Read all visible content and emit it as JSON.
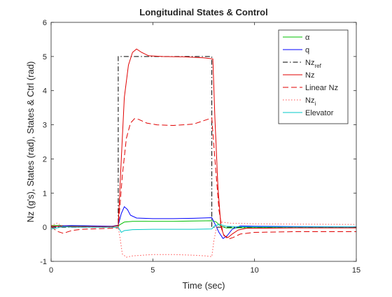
{
  "chart_data": {
    "type": "line",
    "title": "Longitudinal States & Control",
    "xlabel": "Time (sec)",
    "ylabel": "Nz (g's), States (rad), States & Ctrl (rad)",
    "xlim": [
      0,
      15
    ],
    "ylim": [
      -1,
      6
    ],
    "xticks": [
      0,
      5,
      10,
      15
    ],
    "yticks": [
      -1,
      0,
      1,
      2,
      3,
      4,
      5,
      6
    ],
    "grid": false,
    "legend_position": "top-right",
    "series": [
      {
        "name": "α",
        "color": "#00c000",
        "dash": "solid",
        "points": [
          [
            0,
            0.05
          ],
          [
            0.5,
            0.05
          ],
          [
            1,
            0.03
          ],
          [
            2,
            0.02
          ],
          [
            3,
            0.03
          ],
          [
            3.3,
            0.04
          ],
          [
            3.4,
            0.08
          ],
          [
            3.6,
            0.15
          ],
          [
            4,
            0.17
          ],
          [
            5,
            0.17
          ],
          [
            6,
            0.17
          ],
          [
            7,
            0.18
          ],
          [
            7.9,
            0.19
          ],
          [
            8.1,
            0.16
          ],
          [
            8.3,
            0.05
          ],
          [
            8.6,
            -0.02
          ],
          [
            9,
            -0.02
          ],
          [
            10,
            -0.01
          ],
          [
            12,
            0.0
          ],
          [
            15,
            0.0
          ]
        ]
      },
      {
        "name": "q",
        "color": "#0000ff",
        "dash": "solid",
        "points": [
          [
            0,
            0.0
          ],
          [
            0.5,
            0.04
          ],
          [
            1,
            0.05
          ],
          [
            2,
            0.04
          ],
          [
            3,
            0.03
          ],
          [
            3.3,
            0.06
          ],
          [
            3.45,
            0.4
          ],
          [
            3.6,
            0.6
          ],
          [
            3.75,
            0.52
          ],
          [
            3.9,
            0.35
          ],
          [
            4.2,
            0.27
          ],
          [
            5,
            0.25
          ],
          [
            6,
            0.25
          ],
          [
            7,
            0.26
          ],
          [
            7.9,
            0.28
          ],
          [
            8.05,
            0.1
          ],
          [
            8.25,
            -0.15
          ],
          [
            8.45,
            -0.33
          ],
          [
            8.65,
            -0.25
          ],
          [
            8.9,
            -0.06
          ],
          [
            9.3,
            0.04
          ],
          [
            10,
            0.03
          ],
          [
            12,
            0.02
          ],
          [
            15,
            0.01
          ]
        ]
      },
      {
        "name": "Nz_ref",
        "color": "#000000",
        "dash": "dashdot",
        "points": [
          [
            0,
            0
          ],
          [
            3.3,
            0
          ],
          [
            3.3,
            5
          ],
          [
            7.9,
            5
          ],
          [
            7.9,
            0
          ],
          [
            15,
            0
          ]
        ]
      },
      {
        "name": "Nz",
        "color": "#e00000",
        "dash": "solid",
        "points": [
          [
            0,
            0.03
          ],
          [
            1,
            0.02
          ],
          [
            2,
            0.02
          ],
          [
            3,
            0.02
          ],
          [
            3.3,
            0.05
          ],
          [
            3.45,
            2.0
          ],
          [
            3.6,
            3.8
          ],
          [
            3.8,
            4.75
          ],
          [
            4.0,
            5.12
          ],
          [
            4.2,
            5.22
          ],
          [
            4.45,
            5.12
          ],
          [
            4.8,
            5.02
          ],
          [
            5.5,
            5.0
          ],
          [
            6.5,
            4.99
          ],
          [
            7.5,
            4.96
          ],
          [
            7.95,
            4.93
          ],
          [
            8.05,
            3.2
          ],
          [
            8.2,
            1.2
          ],
          [
            8.35,
            0.0
          ],
          [
            8.5,
            -0.25
          ],
          [
            8.7,
            -0.3
          ],
          [
            8.9,
            -0.2
          ],
          [
            9.2,
            -0.08
          ],
          [
            9.6,
            -0.03
          ],
          [
            10,
            -0.03
          ],
          [
            12,
            -0.02
          ],
          [
            15,
            -0.02
          ]
        ]
      },
      {
        "name": "Linear Nz",
        "color": "#e00000",
        "dash": "dash",
        "points": [
          [
            0,
            0.02
          ],
          [
            0.3,
            -0.12
          ],
          [
            0.6,
            -0.18
          ],
          [
            1.0,
            -0.1
          ],
          [
            1.5,
            -0.06
          ],
          [
            2,
            -0.05
          ],
          [
            3,
            -0.03
          ],
          [
            3.3,
            -0.02
          ],
          [
            3.5,
            1.5
          ],
          [
            3.7,
            2.6
          ],
          [
            3.9,
            3.05
          ],
          [
            4.1,
            3.18
          ],
          [
            4.3,
            3.16
          ],
          [
            4.7,
            3.05
          ],
          [
            5.2,
            3.0
          ],
          [
            6,
            2.98
          ],
          [
            7,
            3.02
          ],
          [
            7.5,
            3.12
          ],
          [
            7.9,
            3.2
          ],
          [
            8.05,
            2.0
          ],
          [
            8.25,
            0.5
          ],
          [
            8.45,
            -0.2
          ],
          [
            8.7,
            -0.35
          ],
          [
            8.95,
            -0.3
          ],
          [
            9.3,
            -0.2
          ],
          [
            10,
            -0.15
          ],
          [
            12,
            -0.13
          ],
          [
            15,
            -0.13
          ]
        ]
      },
      {
        "name": "Nz_i",
        "color": "#ff5050",
        "dash": "dot",
        "points": [
          [
            0,
            0.05
          ],
          [
            0.3,
            0.12
          ],
          [
            0.6,
            0.02
          ],
          [
            1,
            0.0
          ],
          [
            2,
            0.0
          ],
          [
            3,
            0.0
          ],
          [
            3.3,
            0.0
          ],
          [
            3.4,
            -0.35
          ],
          [
            3.5,
            -0.78
          ],
          [
            3.7,
            -0.88
          ],
          [
            4.0,
            -0.84
          ],
          [
            5,
            -0.8
          ],
          [
            6,
            -0.8
          ],
          [
            7,
            -0.82
          ],
          [
            7.6,
            -0.84
          ],
          [
            7.9,
            -0.86
          ],
          [
            8.0,
            -0.4
          ],
          [
            8.15,
            0.05
          ],
          [
            8.4,
            0.15
          ],
          [
            8.8,
            0.12
          ],
          [
            10,
            0.1
          ],
          [
            12,
            0.09
          ],
          [
            15,
            0.08
          ]
        ]
      },
      {
        "name": "Elevator",
        "color": "#00c8c8",
        "dash": "solid",
        "points": [
          [
            0,
            -0.05
          ],
          [
            0.3,
            -0.02
          ],
          [
            0.6,
            0.02
          ],
          [
            1,
            0.0
          ],
          [
            2,
            0.0
          ],
          [
            3,
            0.0
          ],
          [
            3.3,
            0.0
          ],
          [
            3.45,
            -0.15
          ],
          [
            3.6,
            -0.1
          ],
          [
            4,
            -0.07
          ],
          [
            5,
            -0.06
          ],
          [
            6,
            -0.06
          ],
          [
            7,
            -0.06
          ],
          [
            7.9,
            -0.05
          ],
          [
            8.05,
            0.05
          ],
          [
            8.3,
            0.08
          ],
          [
            8.6,
            0.03
          ],
          [
            9,
            0.02
          ],
          [
            10,
            0.01
          ],
          [
            12,
            0.01
          ],
          [
            15,
            0.01
          ]
        ]
      }
    ],
    "legend": [
      {
        "label": "α",
        "sub": "",
        "series": 0
      },
      {
        "label": "q",
        "sub": "",
        "series": 1
      },
      {
        "label": "Nz",
        "sub": "ref",
        "series": 2
      },
      {
        "label": "Nz",
        "sub": "",
        "series": 3
      },
      {
        "label": "Linear Nz",
        "sub": "",
        "series": 4
      },
      {
        "label": "Nz",
        "sub": "i",
        "series": 5
      },
      {
        "label": "Elevator",
        "sub": "",
        "series": 6
      }
    ]
  }
}
